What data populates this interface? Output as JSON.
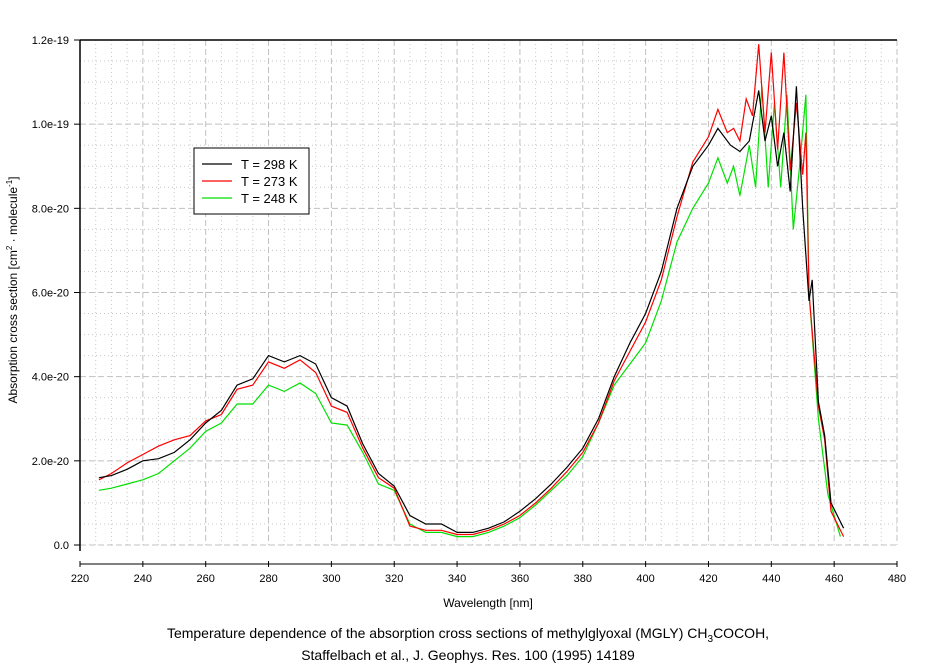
{
  "chart_data": {
    "type": "line",
    "xlabel": "Wavelength [nm]",
    "ylabel_main": "Absorption cross section [cm",
    "ylabel_sup1": "2",
    "ylabel_mid": " · molecule",
    "ylabel_sup2": "-1",
    "ylabel_end": "]",
    "xlim": [
      220,
      480
    ],
    "ylim": [
      0,
      1.2e-19
    ],
    "xticks": [
      220,
      240,
      260,
      280,
      300,
      320,
      340,
      360,
      380,
      400,
      420,
      440,
      460,
      480
    ],
    "yticks": [
      0,
      2e-20,
      4e-20,
      6e-20,
      8e-20,
      1e-19,
      1.2e-19
    ],
    "ytick_labels": [
      "0.0",
      "2.0e-20",
      "4.0e-20",
      "6.0e-20",
      "8.0e-20",
      "1.0e-19",
      "1.2e-19"
    ],
    "grid": true,
    "legend_placement": "top-left",
    "y_unit_scale": 1e-20,
    "series": [
      {
        "name": "T = 298 K",
        "color": "#000000",
        "x": [
          226,
          230,
          235,
          240,
          245,
          250,
          255,
          260,
          265,
          270,
          275,
          280,
          285,
          290,
          295,
          300,
          305,
          310,
          315,
          320,
          325,
          330,
          335,
          340,
          345,
          350,
          355,
          360,
          365,
          370,
          375,
          380,
          385,
          390,
          395,
          400,
          405,
          410,
          415,
          420,
          423,
          427,
          430,
          433,
          436,
          438,
          440,
          442,
          444,
          446,
          448,
          450,
          452,
          453,
          455,
          457,
          459,
          463
        ],
        "y": [
          1.6,
          1.65,
          1.8,
          2.0,
          2.05,
          2.2,
          2.5,
          2.9,
          3.2,
          3.8,
          3.95,
          4.5,
          4.35,
          4.5,
          4.3,
          3.5,
          3.3,
          2.4,
          1.7,
          1.4,
          0.7,
          0.5,
          0.5,
          0.3,
          0.3,
          0.4,
          0.55,
          0.8,
          1.1,
          1.45,
          1.85,
          2.3,
          3.0,
          4.0,
          4.8,
          5.5,
          6.5,
          8.0,
          9.0,
          9.5,
          9.9,
          9.5,
          9.35,
          9.6,
          10.8,
          9.6,
          10.2,
          9.0,
          9.8,
          8.4,
          10.9,
          8.0,
          5.8,
          6.3,
          3.4,
          2.6,
          1.0,
          0.4
        ]
      },
      {
        "name": "T = 273 K",
        "color": "#ff0000",
        "x": [
          226,
          230,
          235,
          240,
          245,
          250,
          255,
          260,
          265,
          270,
          275,
          280,
          285,
          290,
          295,
          300,
          305,
          310,
          315,
          320,
          325,
          330,
          335,
          340,
          345,
          350,
          355,
          360,
          365,
          370,
          375,
          380,
          385,
          390,
          395,
          400,
          405,
          410,
          415,
          420,
          423,
          426,
          428,
          430,
          432,
          434,
          436,
          438,
          440,
          442,
          444,
          446,
          448,
          450,
          451,
          452,
          455,
          457,
          459,
          463
        ],
        "y": [
          1.55,
          1.7,
          1.95,
          2.15,
          2.35,
          2.5,
          2.6,
          2.95,
          3.1,
          3.7,
          3.8,
          4.35,
          4.2,
          4.4,
          4.1,
          3.3,
          3.15,
          2.3,
          1.6,
          1.35,
          0.45,
          0.35,
          0.35,
          0.25,
          0.25,
          0.35,
          0.5,
          0.7,
          1.0,
          1.35,
          1.75,
          2.2,
          2.9,
          3.9,
          4.6,
          5.3,
          6.3,
          7.8,
          9.1,
          9.7,
          10.35,
          9.8,
          9.9,
          9.6,
          10.6,
          10.2,
          11.9,
          9.8,
          11.7,
          9.4,
          11.7,
          8.9,
          10.5,
          8.8,
          9.8,
          6.0,
          3.3,
          2.5,
          0.8,
          0.2
        ]
      },
      {
        "name": "T = 248 K",
        "color": "#00e000",
        "x": [
          226,
          230,
          235,
          240,
          245,
          250,
          255,
          260,
          265,
          270,
          275,
          280,
          285,
          290,
          295,
          300,
          305,
          310,
          315,
          320,
          325,
          330,
          335,
          340,
          345,
          350,
          355,
          360,
          365,
          370,
          375,
          380,
          385,
          390,
          395,
          400,
          405,
          410,
          415,
          420,
          423,
          426,
          428,
          430,
          433,
          435,
          437,
          439,
          441,
          443,
          445,
          447,
          449,
          451,
          452,
          455,
          458,
          462
        ],
        "y": [
          1.3,
          1.35,
          1.45,
          1.55,
          1.7,
          2.0,
          2.3,
          2.7,
          2.9,
          3.35,
          3.35,
          3.8,
          3.65,
          3.85,
          3.6,
          2.9,
          2.85,
          2.2,
          1.45,
          1.3,
          0.5,
          0.3,
          0.3,
          0.2,
          0.2,
          0.3,
          0.45,
          0.65,
          0.95,
          1.3,
          1.65,
          2.1,
          2.9,
          3.8,
          4.3,
          4.8,
          5.8,
          7.2,
          8.0,
          8.6,
          9.2,
          8.6,
          9.0,
          8.3,
          9.5,
          8.5,
          10.9,
          8.5,
          10.5,
          8.5,
          10.7,
          7.5,
          9.0,
          10.7,
          6.0,
          3.0,
          1.2,
          0.2
        ]
      }
    ]
  },
  "caption": {
    "line1_pre": "Temperature dependence of the absorption cross sections of methylglyoxal (MGLY) CH",
    "line1_sub": "3",
    "line1_post": "COCOH,",
    "line2": "Staffelbach et al., J. Geophys. Res. 100 (1995) 14189"
  }
}
